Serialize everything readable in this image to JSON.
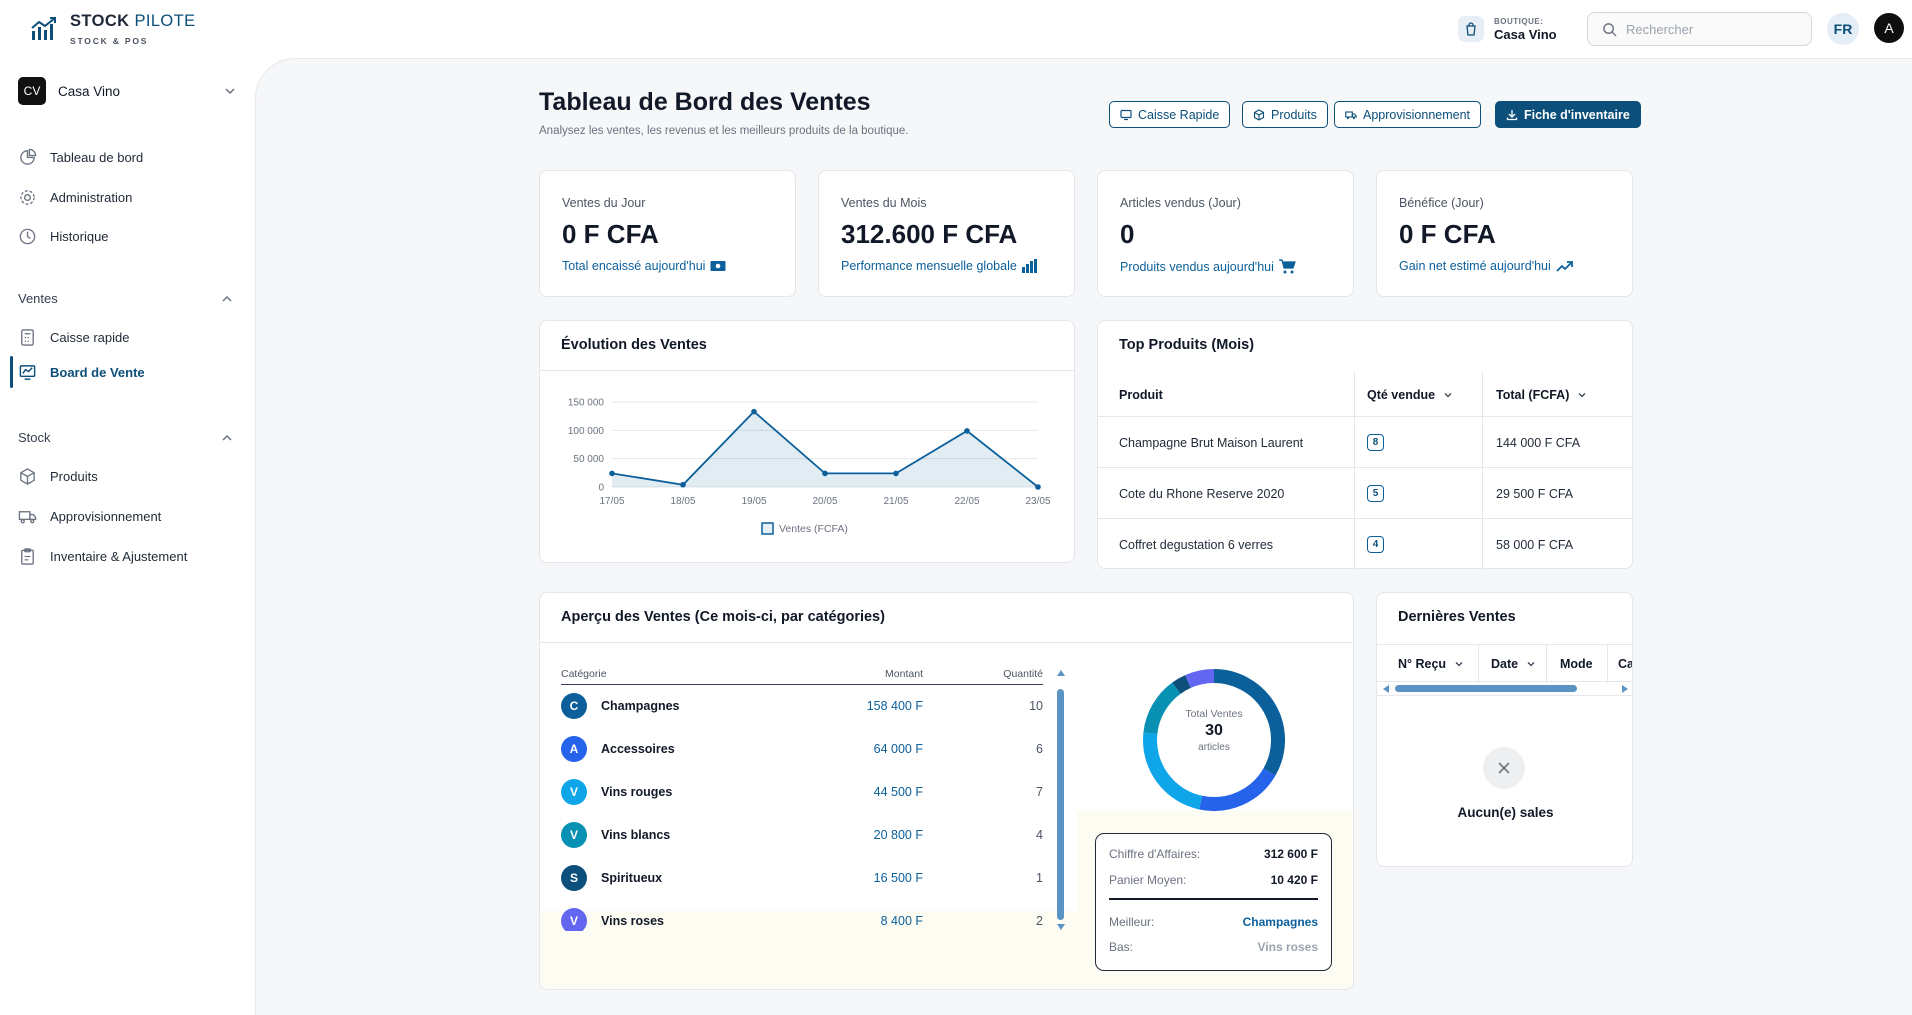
{
  "brand": {
    "name_bold": "STOCK",
    "name_light": "PILOTE",
    "tagline": "STOCK & POS"
  },
  "header": {
    "shop_label": "BOUTIQUE:",
    "shop_value": "Casa Vino",
    "search_placeholder": "Rechercher",
    "lang": "FR",
    "avatar": "A"
  },
  "sidebar": {
    "shop_initials": "CV",
    "shop_name": "Casa Vino",
    "top_items": [
      {
        "label": "Tableau de bord",
        "icon": "pie-chart-icon"
      },
      {
        "label": "Administration",
        "icon": "gear-icon"
      },
      {
        "label": "Historique",
        "icon": "clock-icon"
      }
    ],
    "sections": [
      {
        "title": "Ventes",
        "items": [
          {
            "label": "Caisse rapide",
            "icon": "calculator-icon"
          },
          {
            "label": "Board de Vente",
            "icon": "chart-board-icon",
            "active": true
          }
        ]
      },
      {
        "title": "Stock",
        "items": [
          {
            "label": "Produits",
            "icon": "box-icon"
          },
          {
            "label": "Approvisionnement",
            "icon": "truck-icon"
          },
          {
            "label": "Inventaire & Ajustement",
            "icon": "clipboard-icon"
          }
        ]
      }
    ]
  },
  "page": {
    "title": "Tableau de Bord des Ventes",
    "subtitle": "Analysez les ventes, les revenus et les meilleurs produits de la boutique.",
    "buttons": {
      "caisse": "Caisse Rapide",
      "produits": "Produits",
      "appro": "Approvisionnement",
      "fiche": "Fiche d'inventaire"
    }
  },
  "kpis": [
    {
      "label": "Ventes du Jour",
      "value": "0 F CFA",
      "foot": "Total encaissé aujourd'hui",
      "icon": "cash-icon"
    },
    {
      "label": "Ventes du Mois",
      "value": "312.600 F CFA",
      "foot": "Performance mensuelle globale",
      "icon": "bars-icon"
    },
    {
      "label": "Articles vendus (Jour)",
      "value": "0",
      "foot": "Produits vendus aujourd'hui",
      "icon": "cart-icon"
    },
    {
      "label": "Bénéfice (Jour)",
      "value": "0 F CFA",
      "foot": "Gain net estimé aujourd'hui",
      "icon": "trend-up-icon"
    }
  ],
  "evolution": {
    "title": "Évolution des Ventes"
  },
  "chart_data": {
    "type": "area",
    "categories": [
      "17/05",
      "18/05",
      "19/05",
      "20/05",
      "21/05",
      "22/05",
      "23/05"
    ],
    "series": [
      {
        "name": "Ventes (FCFA)",
        "values": [
          24000,
          4000,
          133000,
          24000,
          24000,
          99000,
          0
        ]
      }
    ],
    "y_ticks": [
      "150 000",
      "100 000",
      "50 000",
      "0"
    ],
    "ylim": [
      0,
      150000
    ],
    "grid": true,
    "legend": "bottom",
    "color": "#0b5f9a"
  },
  "top_produits": {
    "title": "Top Produits (Mois)",
    "headers": [
      "Produit",
      "Qté vendue",
      "Total (FCFA)"
    ],
    "rows": [
      {
        "produit": "Champagne Brut Maison Laurent",
        "qty": "8",
        "total": "144 000 F CFA"
      },
      {
        "produit": "Cote du Rhone Reserve 2020",
        "qty": "5",
        "total": "29 500 F CFA"
      },
      {
        "produit": "Coffret degustation 6 verres",
        "qty": "4",
        "total": "58 000 F CFA"
      }
    ]
  },
  "apercu": {
    "title": "Aperçu des Ventes (Ce mois-ci, par catégories)",
    "headers": {
      "cat": "Catégorie",
      "montant": "Montant",
      "qty": "Quantité"
    },
    "rows": [
      {
        "initial": "C",
        "name": "Champagnes",
        "amount": "158 400 F",
        "qty": "10",
        "color": "#0b5f9a"
      },
      {
        "initial": "A",
        "name": "Accessoires",
        "amount": "64 000 F",
        "qty": "6",
        "color": "#2563eb"
      },
      {
        "initial": "V",
        "name": "Vins rouges",
        "amount": "44 500 F",
        "qty": "7",
        "color": "#0ea5e9"
      },
      {
        "initial": "V",
        "name": "Vins blancs",
        "amount": "20 800 F",
        "qty": "4",
        "color": "#0891b2"
      },
      {
        "initial": "S",
        "name": "Spiritueux",
        "amount": "16 500 F",
        "qty": "1",
        "color": "#0b4f7a"
      },
      {
        "initial": "V",
        "name": "Vins roses",
        "amount": "8 400 F",
        "qty": "2",
        "color": "#6366f1"
      }
    ],
    "donut": {
      "label": "Total Ventes",
      "value": "30",
      "unit": "articles",
      "quantities": [
        10,
        6,
        7,
        4,
        1,
        2
      ]
    },
    "summary": {
      "ca_label": "Chiffre d'Affaires:",
      "ca_value": "312 600 F",
      "panier_label": "Panier Moyen:",
      "panier_value": "10 420 F",
      "best_label": "Meilleur:",
      "best_value": "Champagnes",
      "low_label": "Bas:",
      "low_value": "Vins roses"
    }
  },
  "dernieres": {
    "title": "Dernières Ventes",
    "headers": [
      "N° Reçu",
      "Date",
      "Mode",
      "Ca"
    ],
    "empty": "Aucun(e) sales"
  }
}
